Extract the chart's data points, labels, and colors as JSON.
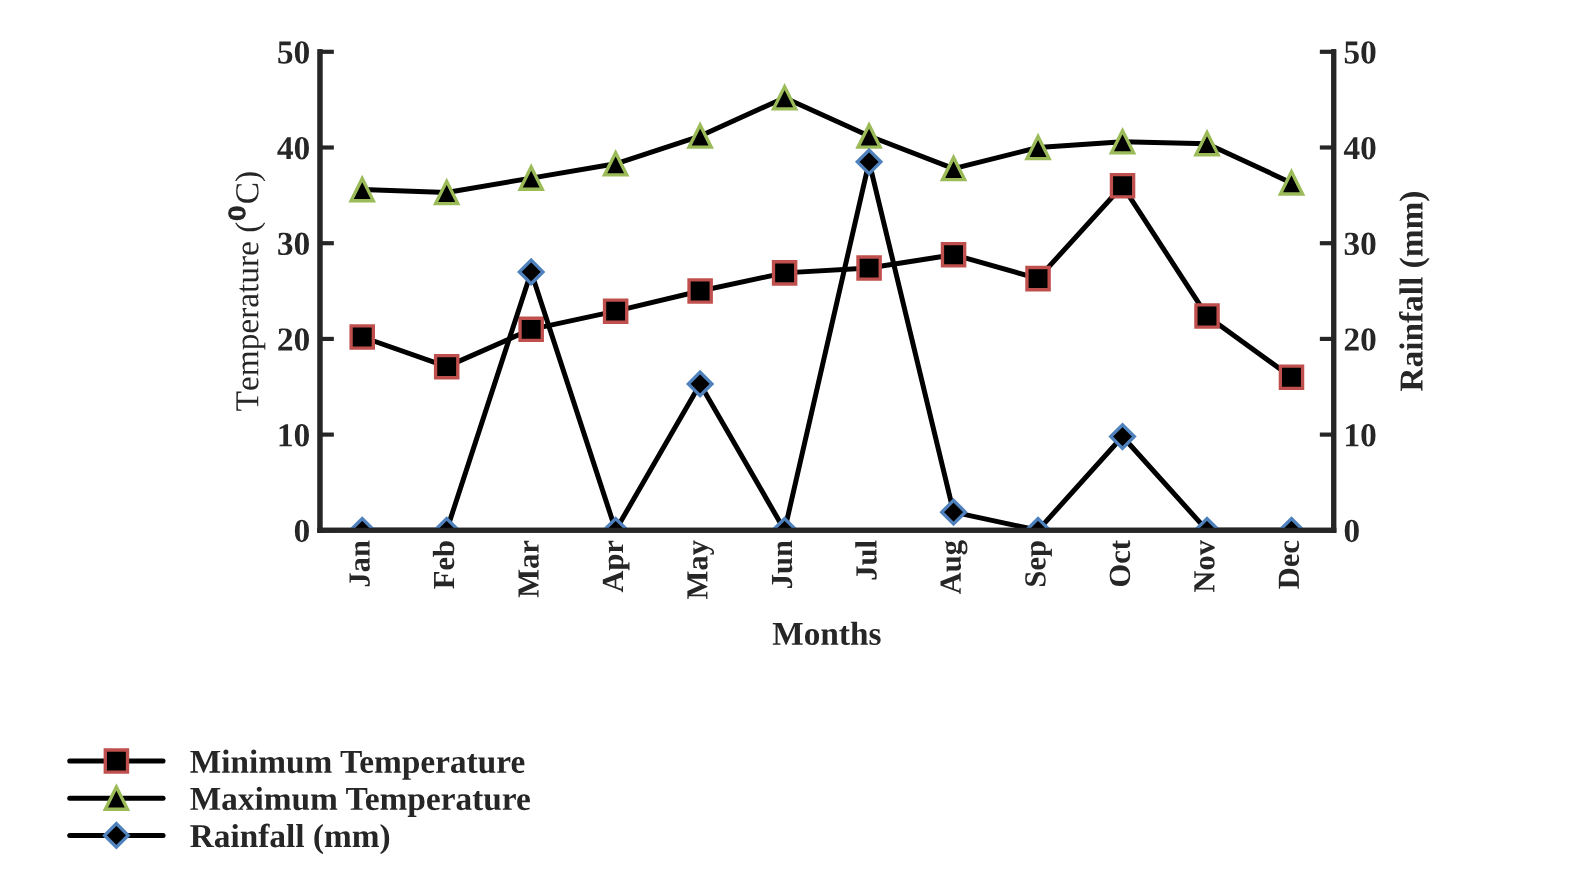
{
  "chart_data": {
    "type": "line",
    "xlabel": "Months",
    "ylabel": "Temperature ($^{0}$C)",
    "y2label": "Rainfall (mm)",
    "categories": [
      "Jan",
      "Feb",
      "Mar",
      "Apr",
      "May",
      "Jun",
      "Jul",
      "Aug",
      "Sep",
      "Oct",
      "Nov",
      "Dec"
    ],
    "series": [
      {
        "name": "Minimum Temperature",
        "color": "#000000",
        "marker": "square",
        "values": [
          20.2,
          17.1,
          21.0,
          22.9,
          25.0,
          26.9,
          27.4,
          28.8,
          26.3,
          36.0,
          22.4,
          16.0
        ]
      },
      {
        "name": "Maximum Temperature",
        "color": "#000000",
        "marker": "triangle",
        "values": [
          35.6,
          35.3,
          36.8,
          38.3,
          41.2,
          45.2,
          41.2,
          37.8,
          40.0,
          40.6,
          40.4,
          36.3
        ]
      },
      {
        "name": "Rainfall (mm)",
        "color": "#000000",
        "marker": "diamond",
        "axis": "y2",
        "values": [
          0,
          0,
          27.0,
          0,
          15.3,
          0,
          38.5,
          1.9,
          0,
          9.8,
          0,
          0
        ]
      }
    ],
    "ylim": [
      0,
      50
    ],
    "yticks": [
      0,
      10,
      20,
      30,
      40,
      50
    ],
    "y2lim": [
      0,
      50
    ],
    "y2ticks": [
      0,
      10,
      20,
      30,
      40,
      50
    ],
    "grid": false,
    "legend": "bottom left",
    "line_style": "solid"
  }
}
